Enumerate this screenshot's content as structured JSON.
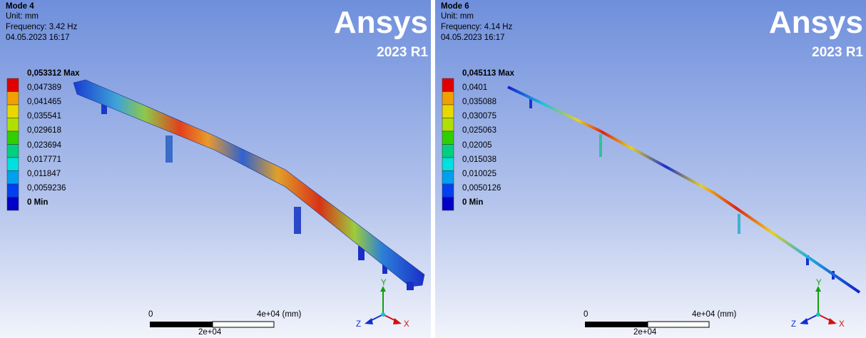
{
  "panels": [
    {
      "title": "Mode 4",
      "unit": "Unit: mm",
      "frequency": "Frequency: 3.42 Hz",
      "timestamp": "04.05.2023 16:17",
      "logo": "Ansys",
      "version": "2023 R1",
      "legend": [
        "0,053312 Max",
        "0,047389",
        "0,041465",
        "0,035541",
        "0,029618",
        "0,023694",
        "0,017771",
        "0,011847",
        "0,0059236",
        "0 Min"
      ],
      "scale": {
        "start": "0",
        "end": "4e+04 (mm)",
        "mid": "2e+04"
      },
      "axes": {
        "x": "X",
        "y": "Y",
        "z": "Z"
      }
    },
    {
      "title": "Mode 6",
      "unit": "Unit: mm",
      "frequency": "Frequency: 4.14 Hz",
      "timestamp": "04.05.2023 16:17",
      "logo": "Ansys",
      "version": "2023 R1",
      "legend": [
        "0,045113 Max",
        "0,0401",
        "0,035088",
        "0,030075",
        "0,025063",
        "0,02005",
        "0,015038",
        "0,010025",
        "0,0050126",
        "0 Min"
      ],
      "scale": {
        "start": "0",
        "end": "4e+04 (mm)",
        "mid": "2e+04"
      },
      "axes": {
        "x": "X",
        "y": "Y",
        "z": "Z"
      }
    }
  ]
}
